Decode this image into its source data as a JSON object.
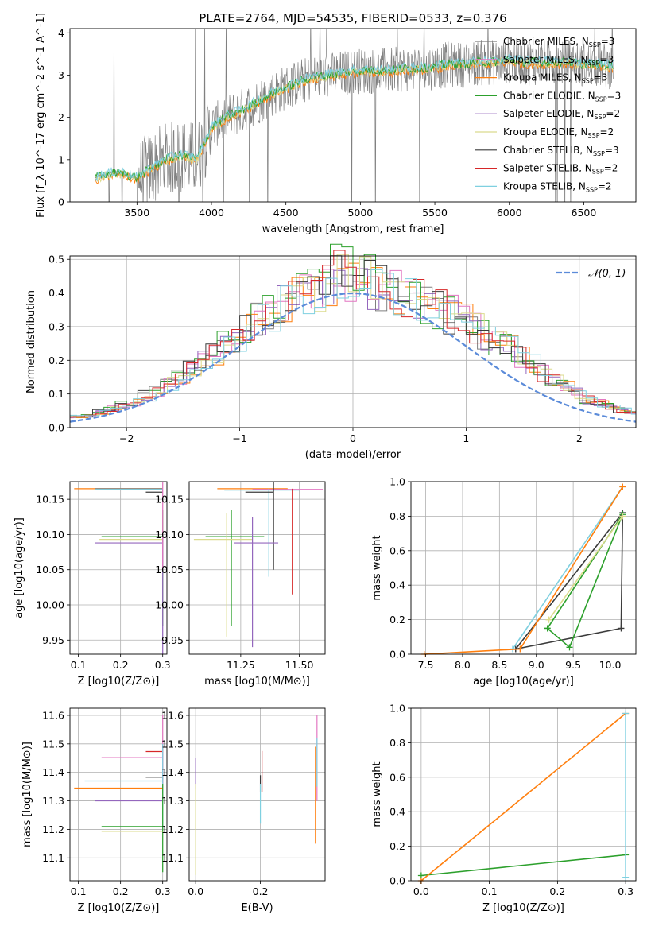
{
  "figure_title": "PLATE=2764, MJD=54535, FIBERID=0533, z=0.376",
  "series_colors": {
    "chabrier_miles": "#7f7f7f",
    "salpeter_miles": "#e377c2",
    "kroupa_miles": "#ff7f0e",
    "chabrier_elodie": "#2ca02c",
    "salpeter_elodie": "#9467bd",
    "kroupa_elodie": "#dbdb8d",
    "chabrier_stelib": "#3b3b3b",
    "salpeter_stelib": "#d62728",
    "kroupa_stelib": "#7fd0e0",
    "normal_curve": "#5b8bd9",
    "raw_spectrum": "#808080"
  },
  "chart_data": [
    {
      "id": "spectrum",
      "type": "line",
      "title": "PLATE=2764, MJD=54535, FIBERID=0533, z=0.376",
      "xlabel": "wavelength [Angstrom, rest frame]",
      "ylabel": "Flux [f_λ 10^-17 erg cm^-2 s^-1 A^-1]",
      "xlim": [
        3050,
        6850
      ],
      "ylim": [
        0,
        4.1
      ],
      "xticks": [
        "3500",
        "4000",
        "4500",
        "5000",
        "5500",
        "6000",
        "6500"
      ],
      "yticks": [
        "0",
        "1",
        "2",
        "3",
        "4"
      ],
      "legend_location": "upper right",
      "legend": [
        "Chabrier MILES, N_SSP=3",
        "Salpeter MILES, N_SSP=3",
        "Kroupa MILES, N_SSP=3",
        "Chabrier ELODIE, N_SSP=3",
        "Salpeter ELODIE, N_SSP=2",
        "Kroupa ELODIE, N_SSP=2",
        "Chabrier STELIB, N_SSP=3",
        "Salpeter STELIB, N_SSP=2",
        "Kroupa STELIB, N_SSP=2"
      ],
      "model_continuum": {
        "x": [
          3220,
          3300,
          3400,
          3500,
          3600,
          3700,
          3800,
          3900,
          4000,
          4100,
          4200,
          4300,
          4400,
          4500,
          4600,
          4700,
          4800,
          4900,
          5000,
          5100,
          5200,
          5300,
          5400,
          5500,
          5600,
          5700,
          5800,
          5900,
          6000,
          6100,
          6200,
          6300,
          6400,
          6500,
          6600,
          6700
        ],
        "y": [
          0.55,
          0.65,
          0.68,
          0.55,
          0.8,
          1.0,
          1.1,
          1.0,
          1.75,
          2.0,
          2.15,
          2.35,
          2.55,
          2.7,
          2.85,
          2.95,
          3.0,
          3.05,
          3.1,
          3.1,
          3.1,
          3.15,
          3.15,
          3.2,
          3.25,
          3.25,
          3.3,
          3.3,
          3.35,
          3.3,
          3.3,
          3.3,
          3.3,
          3.25,
          3.25,
          3.2
        ]
      }
    },
    {
      "id": "residuals",
      "type": "line",
      "xlabel": "(data-model)/error",
      "ylabel": "Normed distribution",
      "xlim": [
        -2.5,
        2.5
      ],
      "ylim": [
        0,
        0.51
      ],
      "xticks": [
        "−2",
        "−1",
        "0",
        "1",
        "2"
      ],
      "yticks": [
        "0.0",
        "0.1",
        "0.2",
        "0.3",
        "0.4",
        "0.5"
      ],
      "grid": true,
      "legend": [
        "𝒩(0, 1)"
      ],
      "legend_location": "upper right",
      "histogram_bin_width": 0.1,
      "histogram_counts": [
        0.018,
        0.026,
        0.024,
        0.026,
        0.034,
        0.031,
        0.038,
        0.046,
        0.058,
        0.068,
        0.078,
        0.094,
        0.108,
        0.127,
        0.148,
        0.172,
        0.196,
        0.222,
        0.246,
        0.272,
        0.296,
        0.322,
        0.346,
        0.364,
        0.382,
        0.398,
        0.412,
        0.422,
        0.428,
        0.426,
        0.42,
        0.42,
        0.412,
        0.402,
        0.388,
        0.378,
        0.366,
        0.352,
        0.336,
        0.318,
        0.3,
        0.28,
        0.258,
        0.236,
        0.214,
        0.19,
        0.165,
        0.142,
        0.122,
        0.102,
        0.085,
        0.072,
        0.062,
        0.052,
        0.045,
        0.04,
        0.036,
        0.032,
        0.03,
        0.028
      ]
    },
    {
      "id": "age_vs_Z",
      "type": "scatter",
      "xlabel": "Z [log10(Z/Z⊙)]",
      "ylabel": "age  [log10(age/yr)]",
      "xlim": [
        0.08,
        0.31
      ],
      "ylim": [
        9.93,
        10.175
      ],
      "xticks": [
        "0.1",
        "0.2",
        "0.3"
      ],
      "yticks": [
        "9.95",
        "10.00",
        "10.05",
        "10.10",
        "10.15"
      ],
      "grid": true,
      "errorbars": [
        {
          "series": "kroupa_miles",
          "x": 0.3,
          "y": 10.165,
          "xlo": 0.09,
          "xhi": 0.3
        },
        {
          "series": "chabrier_miles",
          "x": 0.3,
          "y": 10.165,
          "xlo": 0.14,
          "xhi": 0.3
        },
        {
          "series": "kroupa_stelib",
          "x": 0.3,
          "y": 10.164,
          "xlo": 0.14,
          "xhi": 0.3
        },
        {
          "series": "chabrier_stelib",
          "x": 0.3,
          "y": 10.16,
          "xlo": 0.26,
          "xhi": 0.3
        },
        {
          "series": "chabrier_elodie",
          "x": 0.3,
          "y": 10.097,
          "xlo": 0.155,
          "xhi": 0.3,
          "ylo": 9.97,
          "yhi": 10.135
        },
        {
          "series": "kroupa_elodie",
          "x": 0.3,
          "y": 10.093,
          "xlo": 0.15,
          "xhi": 0.3
        },
        {
          "series": "salpeter_elodie",
          "x": 0.3,
          "y": 10.088,
          "xlo": 0.14,
          "xhi": 0.3,
          "ylo": 9.93,
          "yhi": 10.1
        },
        {
          "series": "salpeter_miles",
          "x": 0.3,
          "y": 10.1,
          "ylo": 10.05,
          "yhi": 10.175
        }
      ]
    },
    {
      "id": "age_vs_mass",
      "type": "scatter",
      "xlabel": "mass [log10(M/M⊙)]",
      "xlim": [
        11.03,
        11.61
      ],
      "ylim": [
        9.93,
        10.175
      ],
      "xticks": [
        "11.25",
        "11.50"
      ],
      "yticks": [
        "9.95",
        "10.00",
        "10.05",
        "10.10",
        "10.15"
      ],
      "grid": true,
      "errorbars": [
        {
          "series": "kroupa_miles",
          "x": 11.35,
          "y": 10.165,
          "xlo": 11.15,
          "xhi": 11.45
        },
        {
          "series": "salpeter_miles",
          "x": 11.46,
          "y": 10.164,
          "xlo": 11.3,
          "xhi": 11.6
        },
        {
          "series": "kroupa_stelib",
          "x": 11.37,
          "y": 10.163,
          "xlo": 11.18,
          "xhi": 11.5,
          "ylo": 10.04,
          "yhi": 10.165
        },
        {
          "series": "chabrier_stelib",
          "x": 11.39,
          "y": 10.16,
          "xlo": 11.27,
          "xhi": 11.39,
          "ylo": 10.05,
          "yhi": 10.175
        },
        {
          "series": "salpeter_stelib",
          "x": 11.47,
          "y": 10.12,
          "ylo": 10.015,
          "yhi": 10.165
        },
        {
          "series": "chabrier_elodie",
          "x": 11.21,
          "y": 10.097,
          "xlo": 11.1,
          "xhi": 11.35,
          "ylo": 9.97,
          "yhi": 10.135
        },
        {
          "series": "kroupa_elodie",
          "x": 11.19,
          "y": 10.093,
          "xlo": 11.05,
          "xhi": 11.3,
          "ylo": 9.955,
          "yhi": 10.13
        },
        {
          "series": "salpeter_elodie",
          "x": 11.3,
          "y": 10.088,
          "xlo": 11.22,
          "xhi": 11.41,
          "ylo": 9.94,
          "yhi": 10.125
        }
      ]
    },
    {
      "id": "mass_weight_vs_age",
      "type": "line",
      "xlabel": "age  [log10(age/yr)]",
      "ylabel": "mass weight",
      "xlim": [
        7.3,
        10.35
      ],
      "ylim": [
        0,
        1.0
      ],
      "xticks": [
        "7.5",
        "8.0",
        "8.5",
        "9.0",
        "9.5",
        "10.0"
      ],
      "yticks": [
        "0.0",
        "0.2",
        "0.4",
        "0.6",
        "0.8",
        "1.0"
      ],
      "grid": true,
      "series": [
        {
          "name": "chabrier_stelib",
          "x": [
            8.72,
            10.15,
            10.17,
            8.72
          ],
          "y": [
            0.03,
            0.15,
            0.82,
            0.03
          ]
        },
        {
          "name": "chabrier_elodie",
          "x": [
            9.15,
            9.45,
            10.17,
            9.15
          ],
          "y": [
            0.15,
            0.04,
            0.81,
            0.15
          ]
        },
        {
          "name": "kroupa_elodie",
          "x": [
            9.17,
            10.17,
            9.17
          ],
          "y": [
            0.2,
            0.8,
            0.2
          ]
        },
        {
          "name": "kroupa_stelib",
          "x": [
            8.68,
            10.17,
            8.68
          ],
          "y": [
            0.03,
            0.97,
            0.03
          ]
        },
        {
          "name": "kroupa_miles",
          "x": [
            7.48,
            8.78,
            10.17
          ],
          "y": [
            0.0,
            0.03,
            0.97
          ]
        }
      ]
    },
    {
      "id": "mass_vs_Z",
      "type": "scatter",
      "xlabel": "Z [log10(Z/Z⊙)]",
      "ylabel": "mass [log10(M/M⊙)]",
      "xlim": [
        0.08,
        0.31
      ],
      "ylim": [
        11.02,
        11.625
      ],
      "xticks": [
        "0.1",
        "0.2",
        "0.3"
      ],
      "yticks": [
        "11.1",
        "11.2",
        "11.3",
        "11.4",
        "11.5",
        "11.6"
      ],
      "grid": true,
      "errorbars": [
        {
          "series": "salpeter_stelib",
          "x": 0.3,
          "y": 11.473,
          "xlo": 0.26,
          "xhi": 0.3,
          "ylo": 11.36,
          "yhi": 11.5
        },
        {
          "series": "salpeter_miles",
          "x": 0.3,
          "y": 11.452,
          "xlo": 0.155,
          "xhi": 0.3,
          "ylo": 11.3,
          "yhi": 11.6
        },
        {
          "series": "chabrier_stelib",
          "x": 0.3,
          "y": 11.383,
          "xlo": 0.26,
          "xhi": 0.3
        },
        {
          "series": "kroupa_stelib",
          "x": 0.3,
          "y": 11.37,
          "xlo": 0.115,
          "xhi": 0.3,
          "ylo": 11.2,
          "yhi": 11.5
        },
        {
          "series": "kroupa_miles",
          "x": 0.3,
          "y": 11.345,
          "xlo": 0.09,
          "xhi": 0.3
        },
        {
          "series": "salpeter_elodie",
          "x": 0.3,
          "y": 11.3,
          "xlo": 0.14,
          "xhi": 0.3
        },
        {
          "series": "chabrier_elodie",
          "x": 0.3,
          "y": 11.21,
          "xlo": 0.155,
          "xhi": 0.3,
          "ylo": 11.05,
          "yhi": 11.36
        },
        {
          "series": "kroupa_elodie",
          "x": 0.3,
          "y": 11.193,
          "xlo": 0.155,
          "xhi": 0.3
        }
      ]
    },
    {
      "id": "mass_vs_ebv",
      "type": "scatter",
      "xlabel": "E(B-V)",
      "xlim": [
        -0.02,
        0.4
      ],
      "ylim": [
        11.02,
        11.625
      ],
      "xticks": [
        "0.0",
        "0.2"
      ],
      "yticks": [
        "11.1",
        "11.2",
        "11.3",
        "11.4",
        "11.5",
        "11.6"
      ],
      "grid": true,
      "errorbars": [
        {
          "series": "salpeter_elodie",
          "x": 0.0,
          "y": 11.4,
          "ylo": 11.34,
          "yhi": 11.45
        },
        {
          "series": "kroupa_elodie",
          "x": 0.0,
          "y": 11.2,
          "ylo": 11.04,
          "yhi": 11.36
        },
        {
          "series": "chabrier_stelib",
          "x": 0.2,
          "y": 11.36,
          "ylo": 11.33,
          "yhi": 11.39
        },
        {
          "series": "salpeter_stelib",
          "x": 0.205,
          "y": 11.4,
          "ylo": 11.33,
          "yhi": 11.475
        },
        {
          "series": "kroupa_stelib",
          "x": 0.2,
          "y": 11.3,
          "ylo": 11.22,
          "yhi": 11.36
        },
        {
          "series": "kroupa_miles",
          "x": 0.37,
          "y": 11.35,
          "ylo": 11.15,
          "yhi": 11.49
        },
        {
          "series": "salpeter_miles",
          "x": 0.375,
          "y": 11.45,
          "ylo": 11.3,
          "yhi": 11.6
        },
        {
          "series": "kroupa_stelib",
          "x": 0.375,
          "y": 11.45,
          "ylo": 11.35,
          "yhi": 11.52
        }
      ]
    },
    {
      "id": "mass_weight_vs_Z",
      "type": "line",
      "xlabel": "Z [log10(Z/Z⊙)]",
      "ylabel": "mass weight",
      "xlim": [
        -0.015,
        0.315
      ],
      "ylim": [
        0,
        1.0
      ],
      "xticks": [
        "0.0",
        "0.1",
        "0.2",
        "0.3"
      ],
      "yticks": [
        "0.0",
        "0.2",
        "0.4",
        "0.6",
        "0.8",
        "1.0"
      ],
      "grid": true,
      "series": [
        {
          "name": "chabrier_elodie",
          "x": [
            0.0,
            0.3
          ],
          "y": [
            0.03,
            0.15
          ]
        },
        {
          "name": "kroupa_miles",
          "x": [
            0.0,
            0.3
          ],
          "y": [
            0.0,
            0.97
          ]
        },
        {
          "name": "kroupa_stelib",
          "x": [
            0.3,
            0.3
          ],
          "y": [
            0.02,
            0.97
          ]
        }
      ]
    }
  ]
}
